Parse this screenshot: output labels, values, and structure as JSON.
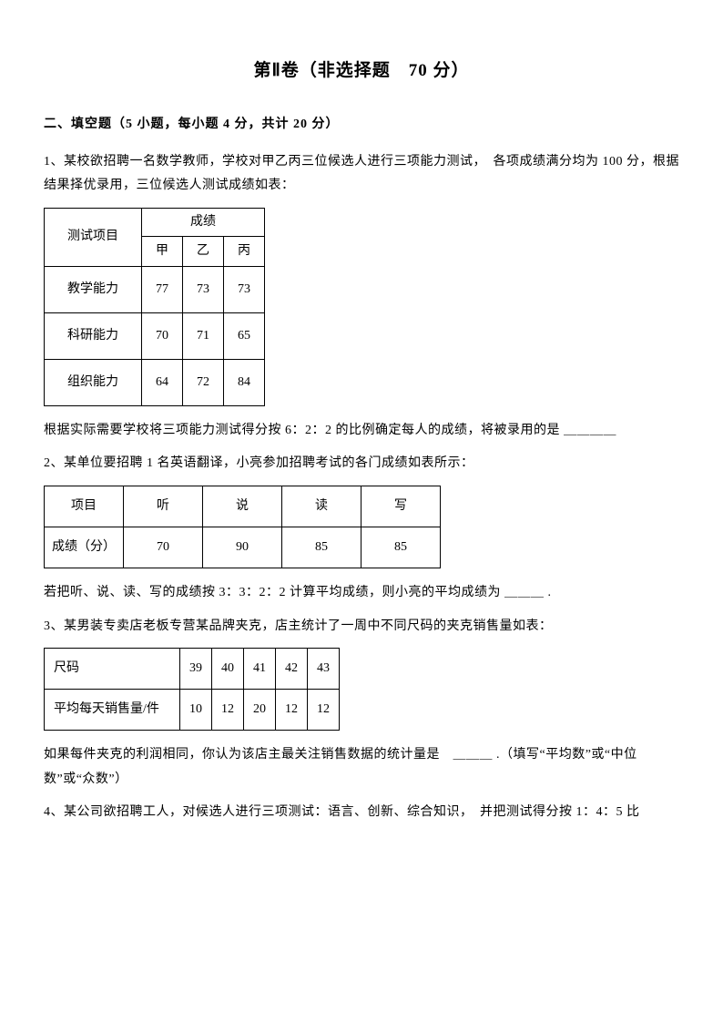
{
  "title": "第Ⅱ卷（非选择题　70 分）",
  "section": "二、填空题（5 小题，每小题 4 分，共计 20 分）",
  "q1": {
    "text_a": "1、某校欲招聘一名数学教师，学校对甲乙丙三位候选人进行三项能力测试，　各项成绩满分均为 100 分，根据结果择优录用，三位候选人测试成绩如表：",
    "row_label": "测试项目",
    "score_label": "成绩",
    "cols": [
      "甲",
      "乙",
      "丙"
    ],
    "rows": [
      {
        "label": "教学能力",
        "v": [
          "77",
          "73",
          "73"
        ]
      },
      {
        "label": "科研能力",
        "v": [
          "70",
          "71",
          "65"
        ]
      },
      {
        "label": "组织能力",
        "v": [
          "64",
          "72",
          "84"
        ]
      }
    ],
    "text_b": "根据实际需要学校将三项能力测试得分按 6：2：2 的比例确定每人的成绩，将被录用的是 ＿＿＿＿"
  },
  "q2": {
    "text_a": "2、某单位要招聘 1 名英语翻译，小亮参加招聘考试的各门成绩如表所示：",
    "headers": [
      "项目",
      "听",
      "说",
      "读",
      "写"
    ],
    "row_label": "成绩（分）",
    "values": [
      "70",
      "90",
      "85",
      "85"
    ],
    "text_b": "若把听、说、读、写的成绩按 3：3：2：2 计算平均成绩，则小亮的平均成绩为 ＿＿＿ ."
  },
  "q3": {
    "text_a": "3、某男装专卖店老板专营某品牌夹克，店主统计了一周中不同尺码的夹克销售量如表：",
    "headers": [
      "尺码",
      "39",
      "40",
      "41",
      "42",
      "43"
    ],
    "row_label": "平均每天销售量/件",
    "values": [
      "10",
      "12",
      "20",
      "12",
      "12"
    ],
    "text_b": "如果每件夹克的利润相同，你认为该店主最关注销售数据的统计量是　＿＿＿ .（填写“平均数”或“中位数”或“众数”）"
  },
  "q4": {
    "text_a": "4、某公司欲招聘工人，对候选人进行三项测试：语言、创新、综合知识，　并把测试得分按 1：4：5 比"
  }
}
